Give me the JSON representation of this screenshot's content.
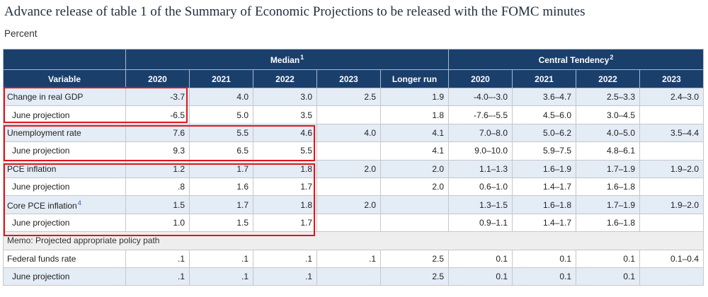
{
  "title": "Advance release of table 1 of the Summary of Economic Projections to be released with the FOMC minutes",
  "subtitle": "Percent",
  "header": {
    "variable_label": "Variable",
    "median_label": "Median",
    "median_note": "1",
    "central_label": "Central Tendency",
    "central_note": "2",
    "columns": [
      "2020",
      "2021",
      "2022",
      "2023",
      "Longer run",
      "2020",
      "2021",
      "2022",
      "2023"
    ]
  },
  "rows": [
    {
      "label": "Change in real GDP",
      "note": "",
      "sub": false,
      "values": [
        "-3.7",
        "4.0",
        "3.0",
        "2.5",
        "1.9",
        "-4.0–-3.0",
        "3.6–4.7",
        "2.5–3.3",
        "2.4–3.0"
      ]
    },
    {
      "label": "June projection",
      "note": "",
      "sub": true,
      "values": [
        "-6.5",
        "5.0",
        "3.5",
        "",
        "1.8",
        "-7.6–-5.5",
        "4.5–6.0",
        "3.0–4.5",
        ""
      ]
    },
    {
      "label": "Unemployment rate",
      "note": "",
      "sub": false,
      "values": [
        "7.6",
        "5.5",
        "4.6",
        "4.0",
        "4.1",
        "7.0–8.0",
        "5.0–6.2",
        "4.0–5.0",
        "3.5–4.4"
      ]
    },
    {
      "label": "June projection",
      "note": "",
      "sub": true,
      "values": [
        "9.3",
        "6.5",
        "5.5",
        "",
        "4.1",
        "9.0–10.0",
        "5.9–7.5",
        "4.8–6.1",
        ""
      ]
    },
    {
      "label": "PCE inflation",
      "note": "",
      "sub": false,
      "values": [
        "1.2",
        "1.7",
        "1.8",
        "2.0",
        "2.0",
        "1.1–1.3",
        "1.6–1.9",
        "1.7–1.9",
        "1.9–2.0"
      ]
    },
    {
      "label": "June projection",
      "note": "",
      "sub": true,
      "values": [
        ".8",
        "1.6",
        "1.7",
        "",
        "2.0",
        "0.6–1.0",
        "1.4–1.7",
        "1.6–1.8",
        ""
      ]
    },
    {
      "label": "Core PCE inflation",
      "note": "4",
      "sub": false,
      "values": [
        "1.5",
        "1.7",
        "1.8",
        "2.0",
        "",
        "1.3–1.5",
        "1.6–1.8",
        "1.7–1.9",
        "1.9–2.0"
      ]
    },
    {
      "label": "June projection",
      "note": "",
      "sub": true,
      "values": [
        "1.0",
        "1.5",
        "1.7",
        "",
        "",
        "0.9–1.1",
        "1.4–1.7",
        "1.6–1.8",
        ""
      ]
    }
  ],
  "memo": "Memo: Projected appropriate policy path",
  "policy_rows": [
    {
      "label": "Federal funds rate",
      "sub": false,
      "values": [
        ".1",
        ".1",
        ".1",
        ".1",
        "2.5",
        "0.1",
        "0.1",
        "0.1",
        "0.1–0.4"
      ]
    },
    {
      "label": "June projection",
      "sub": true,
      "values": [
        ".1",
        ".1",
        ".1",
        "",
        "2.5",
        "0.1",
        "0.1",
        "0.1",
        ""
      ]
    }
  ],
  "colors": {
    "header_bg": "#1b3f6b",
    "row_shade": "#e4ecf6",
    "highlight": "#e0151b",
    "footnote": "#2a5ca8"
  }
}
